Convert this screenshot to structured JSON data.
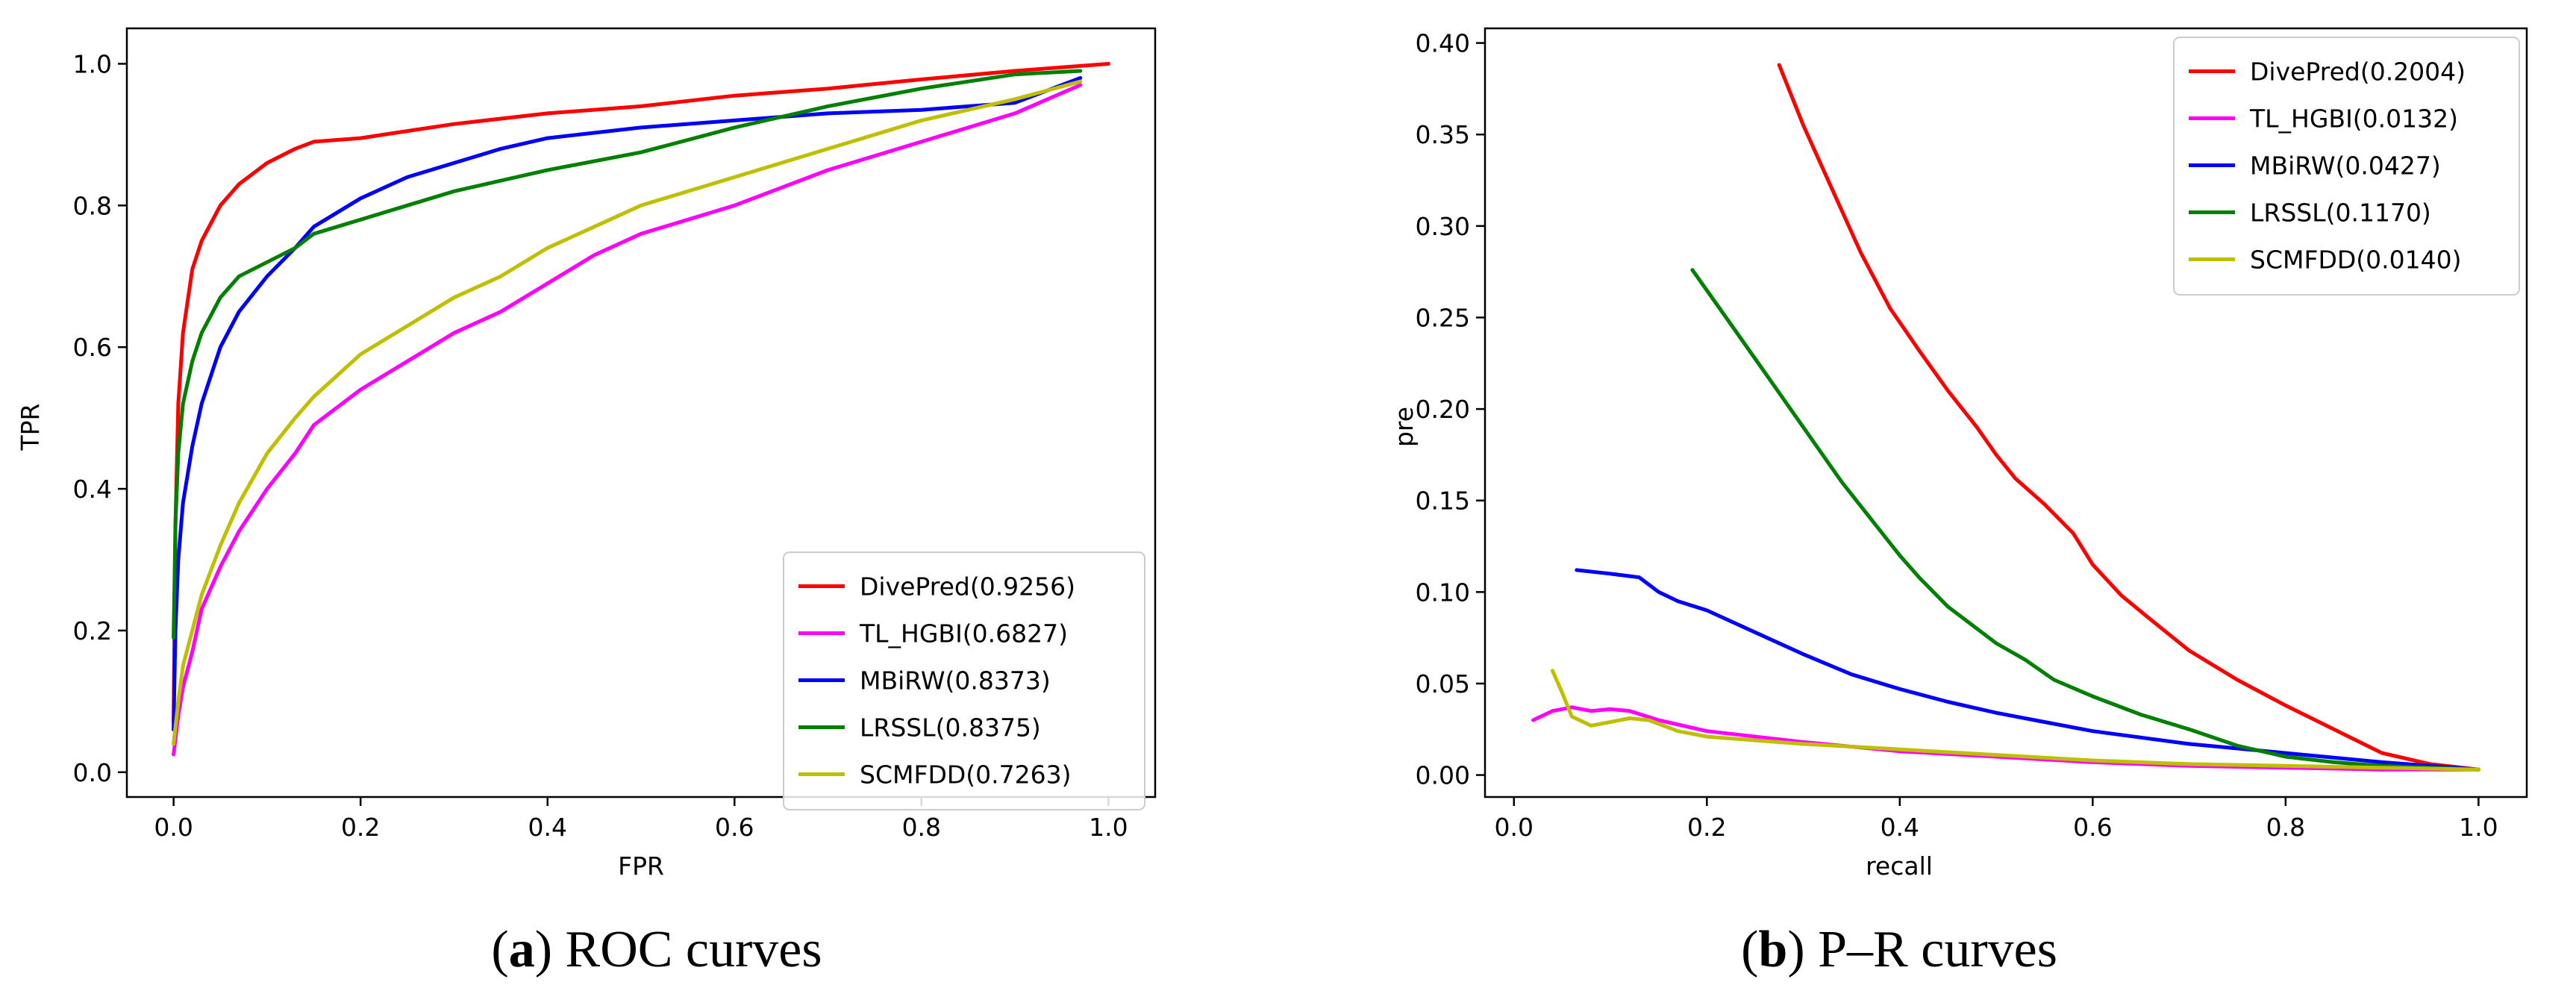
{
  "chart_data": [
    {
      "type": "line",
      "id": "roc",
      "caption_letter": "a",
      "caption_open": "(",
      "caption_close": ")",
      "caption_text": " ROC curves",
      "xlabel": "FPR",
      "ylabel": "TPR",
      "xlim": [
        -0.05,
        1.05
      ],
      "ylim": [
        -0.035,
        1.05
      ],
      "xticks": [
        0.0,
        0.2,
        0.4,
        0.6,
        0.8,
        1.0
      ],
      "xtick_labels": [
        "0.0",
        "0.2",
        "0.4",
        "0.6",
        "0.8",
        "1.0"
      ],
      "yticks": [
        0.0,
        0.2,
        0.4,
        0.6,
        0.8,
        1.0
      ],
      "ytick_labels": [
        "0.0",
        "0.2",
        "0.4",
        "0.6",
        "0.8",
        "1.0"
      ],
      "legend_position": "lower-right",
      "series": [
        {
          "name": "DivePred(0.9256)",
          "color": "#ff0000",
          "points": [
            [
              0,
              0.07
            ],
            [
              0.002,
              0.35
            ],
            [
              0.005,
              0.52
            ],
            [
              0.01,
              0.62
            ],
            [
              0.02,
              0.71
            ],
            [
              0.03,
              0.75
            ],
            [
              0.05,
              0.8
            ],
            [
              0.07,
              0.83
            ],
            [
              0.1,
              0.86
            ],
            [
              0.13,
              0.88
            ],
            [
              0.15,
              0.89
            ],
            [
              0.2,
              0.895
            ],
            [
              0.25,
              0.905
            ],
            [
              0.3,
              0.915
            ],
            [
              0.4,
              0.93
            ],
            [
              0.5,
              0.94
            ],
            [
              0.6,
              0.955
            ],
            [
              0.7,
              0.965
            ],
            [
              0.8,
              0.978
            ],
            [
              0.9,
              0.99
            ],
            [
              0.95,
              0.995
            ],
            [
              1.0,
              1.0
            ]
          ]
        },
        {
          "name": "TL_HGBI(0.6827)",
          "color": "#ff00ff",
          "points": [
            [
              0,
              0.025
            ],
            [
              0.005,
              0.08
            ],
            [
              0.01,
              0.12
            ],
            [
              0.02,
              0.17
            ],
            [
              0.03,
              0.23
            ],
            [
              0.05,
              0.29
            ],
            [
              0.07,
              0.34
            ],
            [
              0.1,
              0.4
            ],
            [
              0.13,
              0.45
            ],
            [
              0.15,
              0.49
            ],
            [
              0.2,
              0.54
            ],
            [
              0.25,
              0.58
            ],
            [
              0.3,
              0.62
            ],
            [
              0.35,
              0.65
            ],
            [
              0.4,
              0.69
            ],
            [
              0.45,
              0.73
            ],
            [
              0.5,
              0.76
            ],
            [
              0.6,
              0.8
            ],
            [
              0.7,
              0.85
            ],
            [
              0.8,
              0.89
            ],
            [
              0.9,
              0.93
            ],
            [
              0.97,
              0.97
            ]
          ]
        },
        {
          "name": "MBiRW(0.8373)",
          "color": "#0000ff",
          "points": [
            [
              0,
              0.06
            ],
            [
              0.002,
              0.2
            ],
            [
              0.005,
              0.3
            ],
            [
              0.01,
              0.38
            ],
            [
              0.02,
              0.46
            ],
            [
              0.03,
              0.52
            ],
            [
              0.05,
              0.6
            ],
            [
              0.07,
              0.65
            ],
            [
              0.1,
              0.7
            ],
            [
              0.13,
              0.74
            ],
            [
              0.15,
              0.77
            ],
            [
              0.2,
              0.81
            ],
            [
              0.25,
              0.84
            ],
            [
              0.3,
              0.86
            ],
            [
              0.35,
              0.88
            ],
            [
              0.4,
              0.895
            ],
            [
              0.5,
              0.91
            ],
            [
              0.6,
              0.92
            ],
            [
              0.7,
              0.93
            ],
            [
              0.8,
              0.935
            ],
            [
              0.9,
              0.945
            ],
            [
              0.97,
              0.98
            ]
          ]
        },
        {
          "name": "LRSSL(0.8375)",
          "color": "#008000",
          "points": [
            [
              0,
              0.19
            ],
            [
              0.002,
              0.35
            ],
            [
              0.005,
              0.45
            ],
            [
              0.01,
              0.52
            ],
            [
              0.02,
              0.58
            ],
            [
              0.03,
              0.62
            ],
            [
              0.05,
              0.67
            ],
            [
              0.07,
              0.7
            ],
            [
              0.1,
              0.72
            ],
            [
              0.13,
              0.74
            ],
            [
              0.15,
              0.76
            ],
            [
              0.2,
              0.78
            ],
            [
              0.25,
              0.8
            ],
            [
              0.3,
              0.82
            ],
            [
              0.35,
              0.835
            ],
            [
              0.4,
              0.85
            ],
            [
              0.5,
              0.875
            ],
            [
              0.6,
              0.91
            ],
            [
              0.7,
              0.94
            ],
            [
              0.8,
              0.965
            ],
            [
              0.9,
              0.985
            ],
            [
              0.97,
              0.99
            ]
          ]
        },
        {
          "name": "SCMFDD(0.7263)",
          "color": "#bfbf00",
          "points": [
            [
              0,
              0.04
            ],
            [
              0.005,
              0.1
            ],
            [
              0.01,
              0.15
            ],
            [
              0.02,
              0.2
            ],
            [
              0.03,
              0.25
            ],
            [
              0.05,
              0.32
            ],
            [
              0.07,
              0.38
            ],
            [
              0.1,
              0.45
            ],
            [
              0.13,
              0.5
            ],
            [
              0.15,
              0.53
            ],
            [
              0.2,
              0.59
            ],
            [
              0.25,
              0.63
            ],
            [
              0.3,
              0.67
            ],
            [
              0.35,
              0.7
            ],
            [
              0.4,
              0.74
            ],
            [
              0.45,
              0.77
            ],
            [
              0.5,
              0.8
            ],
            [
              0.6,
              0.84
            ],
            [
              0.7,
              0.88
            ],
            [
              0.8,
              0.92
            ],
            [
              0.9,
              0.95
            ],
            [
              0.97,
              0.975
            ]
          ]
        }
      ]
    },
    {
      "type": "line",
      "id": "pr",
      "caption_letter": "b",
      "caption_open": "(",
      "caption_close": ")",
      "caption_text": " P–R curves",
      "xlabel": "recall",
      "ylabel": "pre",
      "xlim": [
        -0.03,
        1.05
      ],
      "ylim": [
        -0.012,
        0.408
      ],
      "xticks": [
        0.0,
        0.2,
        0.4,
        0.6,
        0.8,
        1.0
      ],
      "xtick_labels": [
        "0.0",
        "0.2",
        "0.4",
        "0.6",
        "0.8",
        "1.0"
      ],
      "yticks": [
        0.0,
        0.05,
        0.1,
        0.15,
        0.2,
        0.25,
        0.3,
        0.35,
        0.4
      ],
      "ytick_labels": [
        "0.00",
        "0.05",
        "0.10",
        "0.15",
        "0.20",
        "0.25",
        "0.30",
        "0.35",
        "0.40"
      ],
      "legend_position": "top-right",
      "series": [
        {
          "name": "DivePred(0.2004)",
          "color": "#ff0000",
          "points": [
            [
              0.275,
              0.388
            ],
            [
              0.3,
              0.355
            ],
            [
              0.33,
              0.32
            ],
            [
              0.36,
              0.285
            ],
            [
              0.39,
              0.255
            ],
            [
              0.42,
              0.232
            ],
            [
              0.45,
              0.21
            ],
            [
              0.48,
              0.19
            ],
            [
              0.5,
              0.175
            ],
            [
              0.52,
              0.162
            ],
            [
              0.55,
              0.148
            ],
            [
              0.58,
              0.132
            ],
            [
              0.6,
              0.115
            ],
            [
              0.63,
              0.098
            ],
            [
              0.66,
              0.085
            ],
            [
              0.7,
              0.068
            ],
            [
              0.75,
              0.052
            ],
            [
              0.8,
              0.038
            ],
            [
              0.85,
              0.025
            ],
            [
              0.9,
              0.012
            ],
            [
              0.95,
              0.006
            ],
            [
              1.0,
              0.003
            ]
          ]
        },
        {
          "name": "TL_HGBI(0.0132)",
          "color": "#ff00ff",
          "points": [
            [
              0.02,
              0.03
            ],
            [
              0.04,
              0.035
            ],
            [
              0.06,
              0.037
            ],
            [
              0.08,
              0.035
            ],
            [
              0.1,
              0.036
            ],
            [
              0.12,
              0.035
            ],
            [
              0.15,
              0.03
            ],
            [
              0.2,
              0.024
            ],
            [
              0.3,
              0.018
            ],
            [
              0.4,
              0.013
            ],
            [
              0.5,
              0.01
            ],
            [
              0.6,
              0.007
            ],
            [
              0.7,
              0.005
            ],
            [
              0.8,
              0.004
            ],
            [
              0.9,
              0.003
            ],
            [
              1.0,
              0.003
            ]
          ]
        },
        {
          "name": "MBiRW(0.0427)",
          "color": "#0000ff",
          "points": [
            [
              0.065,
              0.112
            ],
            [
              0.1,
              0.11
            ],
            [
              0.13,
              0.108
            ],
            [
              0.15,
              0.1
            ],
            [
              0.17,
              0.095
            ],
            [
              0.2,
              0.09
            ],
            [
              0.25,
              0.078
            ],
            [
              0.3,
              0.066
            ],
            [
              0.35,
              0.055
            ],
            [
              0.4,
              0.047
            ],
            [
              0.45,
              0.04
            ],
            [
              0.5,
              0.034
            ],
            [
              0.55,
              0.029
            ],
            [
              0.6,
              0.024
            ],
            [
              0.7,
              0.017
            ],
            [
              0.8,
              0.012
            ],
            [
              0.9,
              0.007
            ],
            [
              0.95,
              0.005
            ],
            [
              1.0,
              0.003
            ]
          ]
        },
        {
          "name": "LRSSL(0.1170)",
          "color": "#008000",
          "points": [
            [
              0.185,
              0.276
            ],
            [
              0.22,
              0.25
            ],
            [
              0.26,
              0.22
            ],
            [
              0.3,
              0.19
            ],
            [
              0.34,
              0.16
            ],
            [
              0.37,
              0.14
            ],
            [
              0.4,
              0.12
            ],
            [
              0.42,
              0.108
            ],
            [
              0.45,
              0.092
            ],
            [
              0.48,
              0.08
            ],
            [
              0.5,
              0.072
            ],
            [
              0.53,
              0.063
            ],
            [
              0.56,
              0.052
            ],
            [
              0.6,
              0.043
            ],
            [
              0.65,
              0.033
            ],
            [
              0.7,
              0.025
            ],
            [
              0.75,
              0.016
            ],
            [
              0.8,
              0.01
            ],
            [
              0.85,
              0.007
            ],
            [
              0.9,
              0.005
            ],
            [
              0.95,
              0.004
            ],
            [
              1.0,
              0.003
            ]
          ]
        },
        {
          "name": "SCMFDD(0.0140)",
          "color": "#bfbf00",
          "points": [
            [
              0.04,
              0.057
            ],
            [
              0.05,
              0.045
            ],
            [
              0.06,
              0.032
            ],
            [
              0.08,
              0.027
            ],
            [
              0.1,
              0.029
            ],
            [
              0.12,
              0.031
            ],
            [
              0.14,
              0.03
            ],
            [
              0.17,
              0.024
            ],
            [
              0.2,
              0.021
            ],
            [
              0.3,
              0.017
            ],
            [
              0.4,
              0.014
            ],
            [
              0.5,
              0.011
            ],
            [
              0.6,
              0.008
            ],
            [
              0.7,
              0.006
            ],
            [
              0.8,
              0.005
            ],
            [
              0.9,
              0.004
            ],
            [
              1.0,
              0.003
            ]
          ]
        }
      ]
    }
  ]
}
